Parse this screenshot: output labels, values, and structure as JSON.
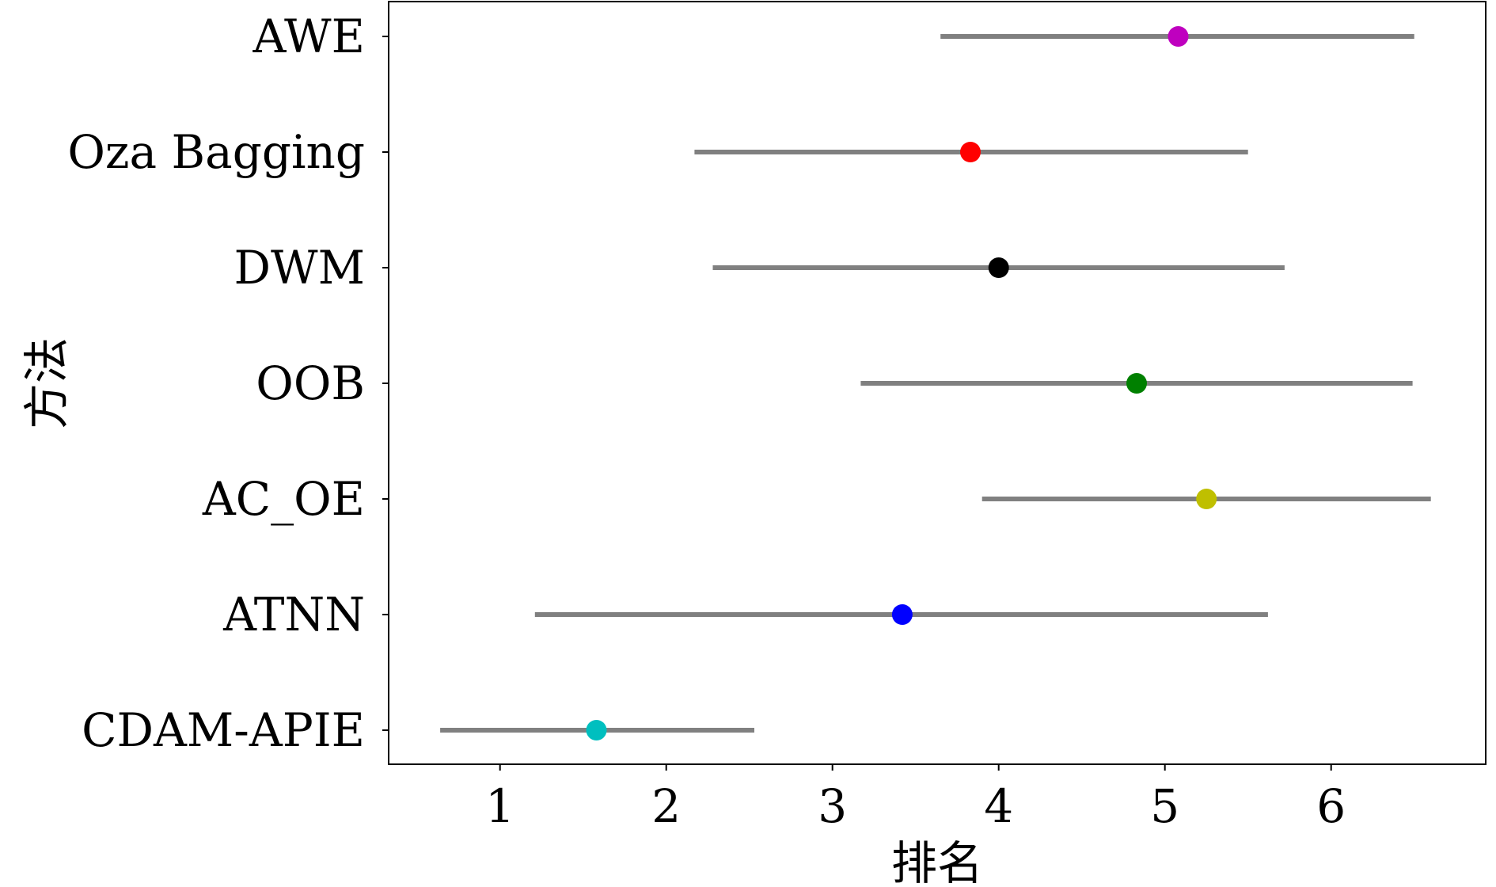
{
  "chart_data": {
    "type": "scatter",
    "subtype": "dot-with-interval",
    "title": "",
    "xlabel": "排名",
    "ylabel": "方法",
    "xlim": [
      0.33,
      6.93
    ],
    "xticks": [
      1,
      2,
      3,
      4,
      5,
      6
    ],
    "grid": false,
    "legend": "none",
    "interval_color": "#808080",
    "categories": [
      "AWE",
      "Oza Bagging",
      "DWM",
      "OOB",
      "AC_OE",
      "ATNN",
      "CDAM-APIE"
    ],
    "series": [
      {
        "values": [
          5.08,
          3.83,
          4.0,
          4.83,
          5.25,
          3.42,
          1.58
        ],
        "lower": [
          3.65,
          2.17,
          2.28,
          3.17,
          3.9,
          1.21,
          0.64
        ],
        "upper": [
          6.5,
          5.5,
          5.72,
          6.49,
          6.6,
          5.62,
          2.53
        ],
        "colors": [
          "#bf00bf",
          "#ff0000",
          "#000000",
          "#008000",
          "#bfbf00",
          "#0000ff",
          "#00bfbf"
        ]
      }
    ]
  }
}
